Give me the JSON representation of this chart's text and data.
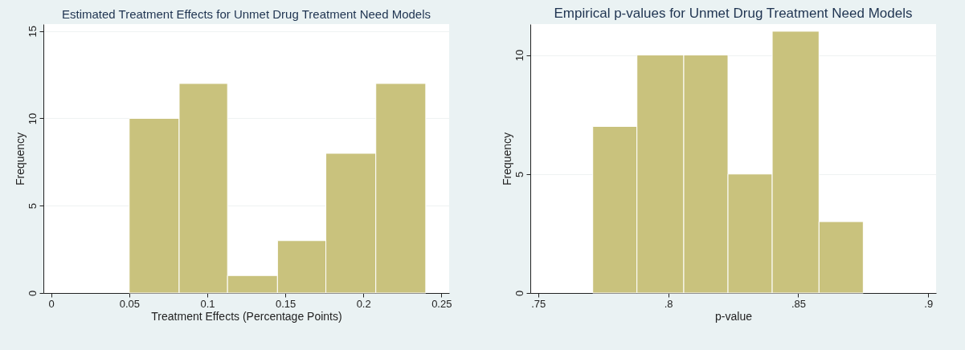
{
  "chart_data": [
    {
      "type": "histogram",
      "title": "Estimated Treatment Effects for Unmet Drug Treatment Need Models",
      "xlabel": "Treatment Effects (Percentage Points)",
      "ylabel": "Frequency",
      "bins": [
        0.05,
        0.082,
        0.113,
        0.145,
        0.176,
        0.208,
        0.24
      ],
      "values": [
        10,
        12,
        1,
        3,
        8,
        12
      ],
      "color": "#c9c27d",
      "xlim": [
        -0.005,
        0.255
      ],
      "xticks": [
        0,
        0.05,
        0.1,
        0.15,
        0.2,
        0.25
      ],
      "ylim": [
        0,
        15.4
      ],
      "yticks": [
        0,
        5,
        10,
        15
      ],
      "grid": "y"
    },
    {
      "type": "histogram",
      "title": "Empirical p-values for Unmet Drug Treatment Need Models",
      "xlabel": "p-value",
      "ylabel": "Frequency",
      "bins": [
        0.771,
        0.788,
        0.806,
        0.823,
        0.84,
        0.858,
        0.875
      ],
      "values": [
        7,
        10,
        10,
        5,
        11,
        3
      ],
      "color": "#c9c27d",
      "xlim": [
        0.747,
        0.903
      ],
      "xticks": [
        {
          "value": 0.75,
          "label": ".75"
        },
        {
          "value": 0.8,
          "label": ".8"
        },
        {
          "value": 0.85,
          "label": ".85"
        },
        {
          "value": 0.9,
          "label": ".9"
        }
      ],
      "ylim": [
        0,
        11.3
      ],
      "yticks": [
        0,
        5,
        10
      ],
      "grid": "y"
    }
  ]
}
